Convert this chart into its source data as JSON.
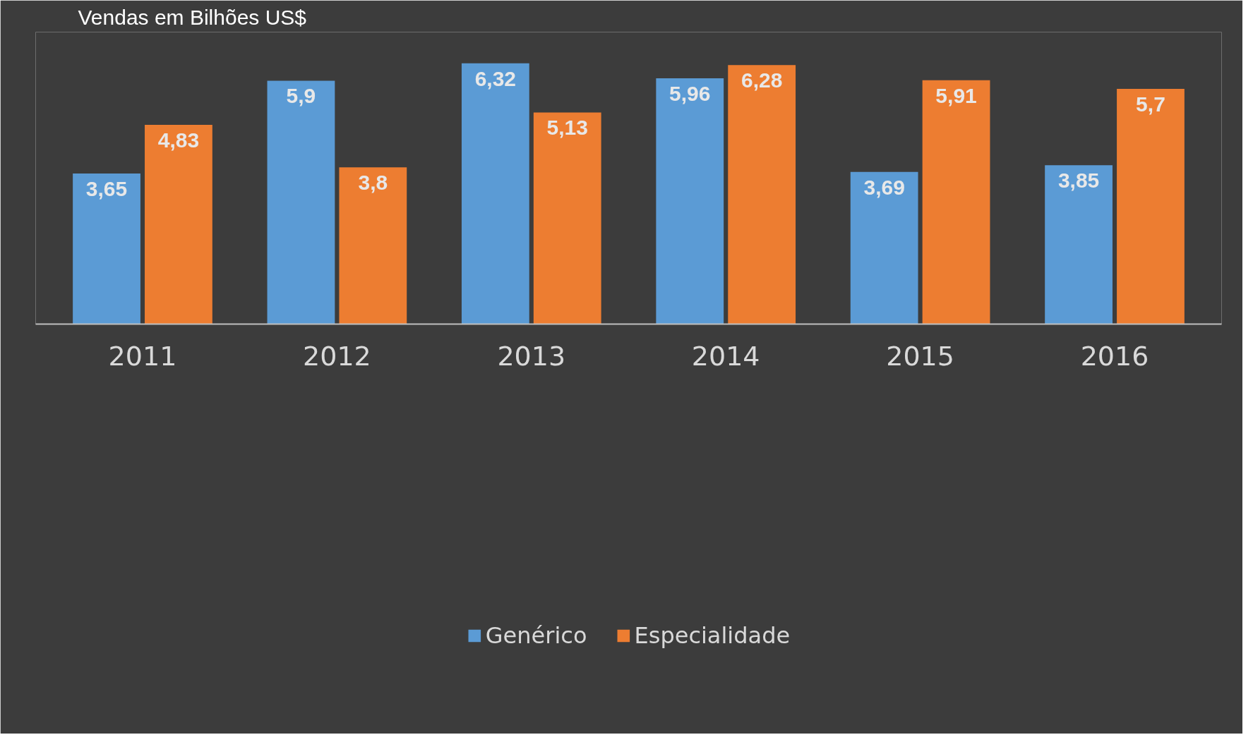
{
  "chart_data": {
    "type": "bar",
    "title": "Vendas em Bilhões US$",
    "categories": [
      "2011",
      "2012",
      "2013",
      "2014",
      "2015",
      "2016"
    ],
    "series": [
      {
        "name": "Genérico",
        "color": "#5b9bd5",
        "values": [
          3.65,
          5.9,
          6.32,
          5.96,
          3.69,
          3.85
        ],
        "value_labels": [
          "3,65",
          "5,9",
          "6,32",
          "5,96",
          "3,69",
          "3,85"
        ]
      },
      {
        "name": "Especialidade",
        "color": "#ed7d31",
        "values": [
          4.83,
          3.8,
          5.13,
          6.28,
          5.91,
          5.7
        ],
        "value_labels": [
          "4,83",
          "3,8",
          "5,13",
          "6,28",
          "5,91",
          "5,7"
        ]
      }
    ],
    "legend": "bottom",
    "grid": false
  }
}
